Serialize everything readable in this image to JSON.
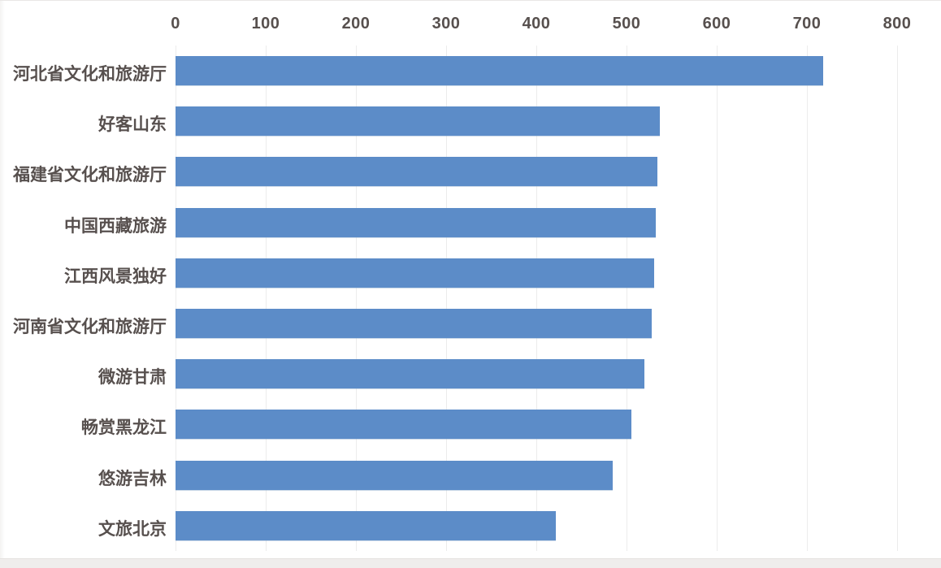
{
  "chart_data": {
    "type": "bar",
    "orientation": "horizontal",
    "title": "",
    "xlabel": "",
    "ylabel": "",
    "axis_position": "top",
    "xlim": [
      0,
      800
    ],
    "x_ticks": [
      0,
      100,
      200,
      300,
      400,
      500,
      600,
      700,
      800
    ],
    "grid": "vertical-only",
    "legend": "none",
    "categories": [
      "河北省文化和旅游厅",
      "好客山东",
      "福建省文化和旅游厅",
      "中国西藏旅游",
      "江西风景独好",
      "河南省文化和旅游厅",
      "微游甘肃",
      "畅赏黑龙江",
      "悠游吉林",
      "文旅北京"
    ],
    "values": [
      718,
      537,
      534,
      532,
      531,
      528,
      520,
      505,
      485,
      422
    ]
  },
  "colors": {
    "bar": "#5c8cc8",
    "text": "#57504e",
    "gridline": "#ececec",
    "bottom_band": "#efedec",
    "background": "#ffffff"
  }
}
